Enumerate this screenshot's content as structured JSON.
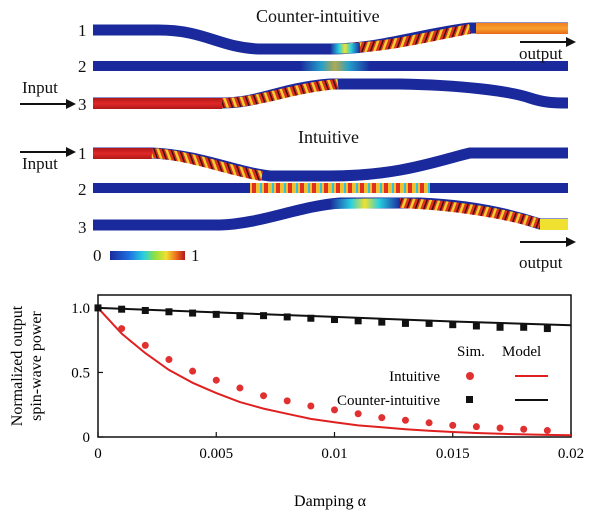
{
  "panels": {
    "counter": {
      "title": "Counter-intuitive",
      "waveguides": [
        "1",
        "2",
        "3"
      ],
      "input_label": "Input",
      "output_label": "output"
    },
    "intuitive": {
      "title": "Intuitive",
      "waveguides": [
        "1",
        "2",
        "3"
      ],
      "input_label": "Input",
      "output_label": "output"
    },
    "colorbar": {
      "min_label": "0",
      "max_label": "1"
    }
  },
  "colors": {
    "guide_base": "#1a2a9c",
    "sim_intuitive": "#e03030",
    "sim_counter": "#111111",
    "model_intuitive": "#e02020",
    "model_counter": "#111111"
  },
  "chart_data": {
    "type": "scatter",
    "xlabel": "Damping α",
    "ylabel": "Normalized output spin-wave power",
    "xlim": [
      0,
      0.02
    ],
    "ylim": [
      0,
      1.1
    ],
    "xticks": [
      "0",
      "0.005",
      "0.01",
      "0.015",
      "0.02"
    ],
    "yticks": [
      "0",
      "0.5",
      "1.0"
    ],
    "legend": {
      "header_sim": "Sim.",
      "header_model": "Model",
      "entries": [
        "Intuitive",
        "Counter-intuitive"
      ],
      "position": "right"
    },
    "series": [
      {
        "name": "Intuitive",
        "kind": "sim",
        "x": [
          0,
          0.001,
          0.002,
          0.003,
          0.004,
          0.005,
          0.006,
          0.007,
          0.008,
          0.009,
          0.01,
          0.011,
          0.012,
          0.013,
          0.014,
          0.015,
          0.016,
          0.017,
          0.018,
          0.019
        ],
        "y": [
          1.0,
          0.84,
          0.71,
          0.6,
          0.51,
          0.44,
          0.38,
          0.32,
          0.28,
          0.24,
          0.21,
          0.18,
          0.15,
          0.13,
          0.11,
          0.09,
          0.08,
          0.07,
          0.06,
          0.05
        ]
      },
      {
        "name": "Counter-intuitive",
        "kind": "sim",
        "x": [
          0,
          0.001,
          0.002,
          0.003,
          0.004,
          0.005,
          0.006,
          0.007,
          0.008,
          0.009,
          0.01,
          0.011,
          0.012,
          0.013,
          0.014,
          0.015,
          0.016,
          0.017,
          0.018,
          0.019
        ],
        "y": [
          1.0,
          0.99,
          0.98,
          0.97,
          0.96,
          0.95,
          0.94,
          0.94,
          0.93,
          0.92,
          0.91,
          0.9,
          0.89,
          0.88,
          0.88,
          0.87,
          0.86,
          0.85,
          0.85,
          0.84
        ]
      },
      {
        "name": "Intuitive",
        "kind": "model",
        "x": [
          0,
          0.001,
          0.002,
          0.003,
          0.004,
          0.005,
          0.006,
          0.007,
          0.008,
          0.009,
          0.01,
          0.011,
          0.012,
          0.013,
          0.014,
          0.015,
          0.016,
          0.017,
          0.018,
          0.019,
          0.02
        ],
        "y": [
          1.0,
          0.8,
          0.65,
          0.52,
          0.42,
          0.34,
          0.27,
          0.22,
          0.18,
          0.14,
          0.115,
          0.09,
          0.075,
          0.06,
          0.048,
          0.039,
          0.031,
          0.025,
          0.02,
          0.016,
          0.013
        ]
      },
      {
        "name": "Counter-intuitive",
        "kind": "model",
        "x": [
          0,
          0.005,
          0.01,
          0.015,
          0.02
        ],
        "y": [
          1.0,
          0.965,
          0.93,
          0.895,
          0.865
        ]
      }
    ]
  }
}
